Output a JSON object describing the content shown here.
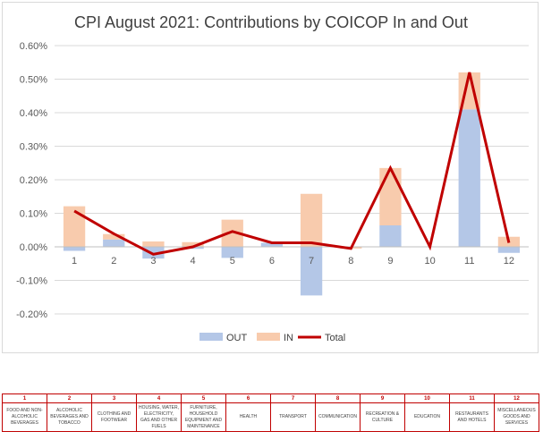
{
  "chart_data": {
    "type": "bar",
    "title": "CPI August 2021: Contributions by COICOP In and Out",
    "categories": [
      "1",
      "2",
      "3",
      "4",
      "5",
      "6",
      "7",
      "8",
      "9",
      "10",
      "11",
      "12"
    ],
    "ylim": [
      -0.2,
      0.6
    ],
    "yticks": [
      -0.2,
      -0.1,
      0.0,
      0.1,
      0.2,
      0.3,
      0.4,
      0.5,
      0.6
    ],
    "ytick_labels": [
      "-0.20%",
      "-0.10%",
      "0.00%",
      "0.10%",
      "0.20%",
      "0.30%",
      "0.40%",
      "0.50%",
      "0.60%"
    ],
    "stacked": true,
    "grid": true,
    "legend_position": "bottom",
    "series": [
      {
        "name": "OUT",
        "type": "bar",
        "color": "#b4c7e7",
        "values": [
          -0.012,
          0.022,
          -0.035,
          -0.006,
          -0.033,
          0.012,
          -0.145,
          0.0,
          0.064,
          0.0,
          0.41,
          -0.018
        ]
      },
      {
        "name": "IN",
        "type": "bar",
        "color": "#f8cbad",
        "values": [
          0.121,
          0.016,
          0.016,
          0.014,
          0.081,
          0.0,
          0.158,
          -0.005,
          0.171,
          0.0,
          0.11,
          0.03
        ]
      },
      {
        "name": "Total",
        "type": "line",
        "color": "#c00000",
        "values": [
          0.107,
          0.039,
          -0.022,
          0.0,
          0.046,
          0.012,
          0.012,
          -0.005,
          0.235,
          0.0,
          0.52,
          0.012
        ]
      }
    ]
  },
  "coicop_table": {
    "numbers": [
      "1",
      "2",
      "3",
      "4",
      "5",
      "6",
      "7",
      "8",
      "9",
      "10",
      "11",
      "12"
    ],
    "names": [
      "FOOD AND NON-ALCOHOLIC BEVERAGES",
      "ALCOHOLIC BEVERAGES AND TOBACCO",
      "CLOTHING AND FOOTWEAR",
      "HOUSING, WATER, ELECTRICITY, GAS AND OTHER FUELS",
      "FURNITURE, HOUSEHOLD EQUIPMENT AND MAINTENANCE",
      "HEALTH",
      "TRANSPORT",
      "COMMUNICATION",
      "RECREATION & CULTURE",
      "EDUCATION",
      "RESTAURANTS AND HOTELS",
      "MISCELLANEOUS GOODS AND SERVICES"
    ]
  }
}
